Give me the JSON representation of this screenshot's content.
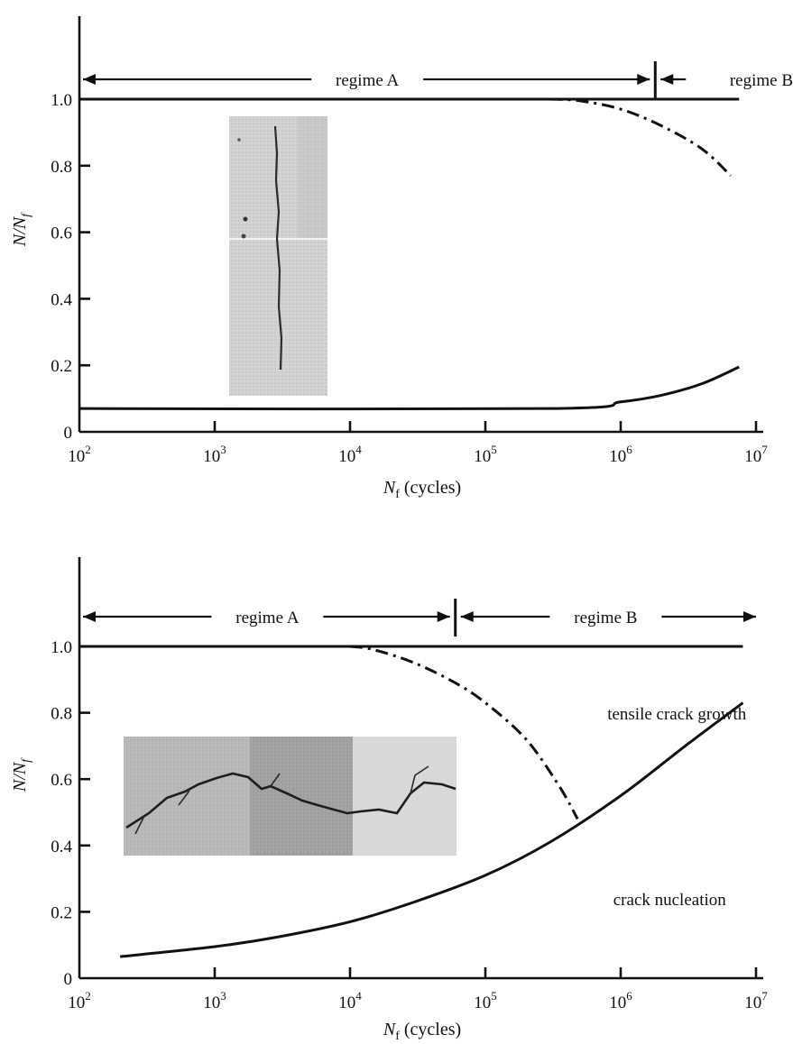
{
  "chart_data": [
    {
      "type": "line",
      "x_scale": "log",
      "xlim": [
        100,
        10000000
      ],
      "ylim": [
        0,
        1.0
      ],
      "x_ticks": [
        100,
        1000,
        10000,
        100000,
        1000000,
        10000000
      ],
      "x_tick_labels": [
        {
          "base": "10",
          "exp": "2"
        },
        {
          "base": "10",
          "exp": "3"
        },
        {
          "base": "10",
          "exp": "4"
        },
        {
          "base": "10",
          "exp": "5"
        },
        {
          "base": "10",
          "exp": "6"
        },
        {
          "base": "10",
          "exp": "7"
        }
      ],
      "y_ticks": [
        0,
        0.2,
        0.4,
        0.6,
        0.8,
        1.0
      ],
      "y_tick_labels": [
        "0",
        "0.2",
        "0.4",
        "0.6",
        "0.8",
        "1.0"
      ],
      "ylabel": {
        "main": "N/N",
        "sub": "f"
      },
      "xlabel": {
        "main": "N",
        "sub": "f",
        "rest": " (cycles)"
      },
      "regime_boundary_x": 1800000,
      "regime_a_label": "regime A",
      "regime_b_label": "regime B",
      "annotations": [],
      "series": [
        {
          "style": "solid",
          "x": [
            100,
            7500000
          ],
          "y": [
            1.0,
            1.0
          ]
        },
        {
          "style": "dashdot",
          "x": [
            300000,
            500000,
            1000000,
            2000000,
            4000000,
            6500000
          ],
          "y": [
            1.0,
            0.995,
            0.97,
            0.92,
            0.85,
            0.77
          ]
        },
        {
          "style": "solid",
          "x": [
            100,
            300000,
            1000000,
            2000000,
            4000000,
            7500000
          ],
          "y": [
            0.07,
            0.07,
            0.09,
            0.11,
            0.145,
            0.195
          ]
        }
      ]
    },
    {
      "type": "line",
      "x_scale": "log",
      "xlim": [
        100,
        10000000
      ],
      "ylim": [
        0,
        1.0
      ],
      "x_ticks": [
        100,
        1000,
        10000,
        100000,
        1000000,
        10000000
      ],
      "x_tick_labels": [
        {
          "base": "10",
          "exp": "2"
        },
        {
          "base": "10",
          "exp": "3"
        },
        {
          "base": "10",
          "exp": "4"
        },
        {
          "base": "10",
          "exp": "5"
        },
        {
          "base": "10",
          "exp": "6"
        },
        {
          "base": "10",
          "exp": "7"
        }
      ],
      "y_ticks": [
        0,
        0.2,
        0.4,
        0.6,
        0.8,
        1.0
      ],
      "y_tick_labels": [
        "0",
        "0.2",
        "0.4",
        "0.6",
        "0.8",
        "1.0"
      ],
      "ylabel": {
        "main": "N/N",
        "sub": "f"
      },
      "xlabel": {
        "main": "N",
        "sub": "f",
        "rest": " (cycles)"
      },
      "regime_boundary_x": 60000,
      "regime_a_label": "regime A",
      "regime_b_label": "regime B",
      "annotations": [
        {
          "text": "tensile crack growth",
          "x": 2600000,
          "y": 0.78
        },
        {
          "text": "crack nucleation",
          "x": 2300000,
          "y": 0.22
        }
      ],
      "series": [
        {
          "style": "solid",
          "x": [
            100,
            8000000
          ],
          "y": [
            1.0,
            1.0
          ]
        },
        {
          "style": "dashdot",
          "x": [
            10000,
            15000,
            30000,
            60000,
            100000,
            200000,
            350000,
            480000
          ],
          "y": [
            1.0,
            0.99,
            0.95,
            0.89,
            0.83,
            0.72,
            0.58,
            0.48
          ]
        },
        {
          "style": "solid",
          "x": [
            200,
            1000,
            3000,
            10000,
            30000,
            100000,
            300000,
            1000000,
            3000000,
            8000000
          ],
          "y": [
            0.065,
            0.095,
            0.125,
            0.17,
            0.23,
            0.31,
            0.41,
            0.55,
            0.7,
            0.83
          ]
        }
      ]
    }
  ]
}
